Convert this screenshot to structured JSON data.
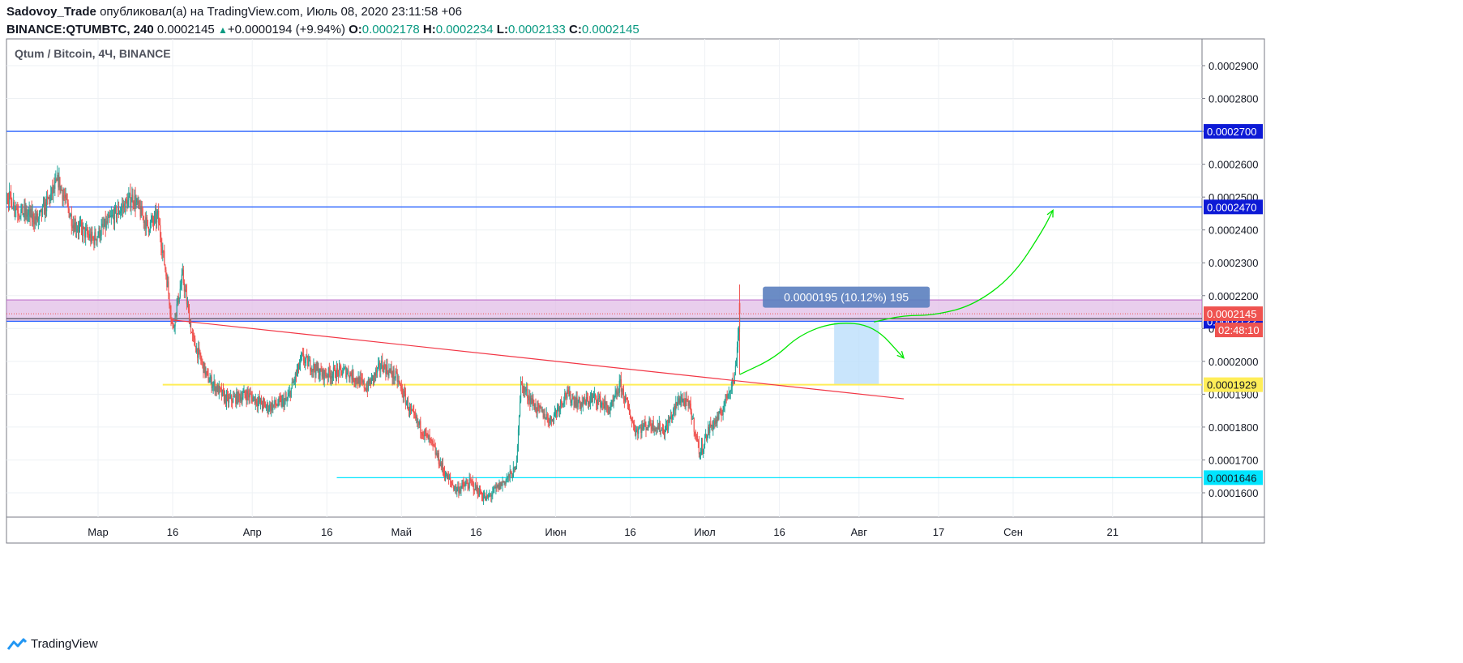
{
  "header": {
    "author": "Sadovoy_Trade",
    "published_text": "опубликовал(а) на TradingView.com, Июль 08, 2020 23:11:58 +06",
    "symbol": "BINANCE:QTUMBTC, 240",
    "last": "0.0002145",
    "change_arrow": "▲",
    "change": "+0.0000194 (+9.94%)",
    "o_label": "O:",
    "o_value": "0.0002178",
    "h_label": "H:",
    "h_value": "0.0002234",
    "l_label": "L:",
    "l_value": "0.0002133",
    "c_label": "C:",
    "c_value": "0.0002145"
  },
  "footer": {
    "brand": "TradingView"
  },
  "colors": {
    "up": "#26a69a",
    "down": "#ef5350",
    "grid": "#eef1f4",
    "resistance_blue": "#2962ff",
    "zone_fill": "#e1bee7",
    "trendline": "#f23645",
    "support_yellow": "#ffee58",
    "support_cyan": "#00e5ff",
    "projection_green": "#00e600",
    "measure_fill": "#bbdefb"
  },
  "chart_data": {
    "type": "candlestick",
    "title": "Qtum / Bitcoin, 4Ч, BINANCE",
    "timeframe": "4h",
    "date_range": [
      "2020-02-01",
      "2020-07-08"
    ],
    "y_ticks": [
      "0.0001600",
      "0.0001700",
      "0.0001800",
      "0.0001900",
      "0.0002000",
      "0.0002100",
      "0.0002200",
      "0.0002300",
      "0.0002400",
      "0.0002500",
      "0.0002600",
      "0.0002700",
      "0.0002800",
      "0.0002900"
    ],
    "y_range": [
      0.000153,
      0.000296
    ],
    "x_ticks": [
      {
        "label": "Мар",
        "date": "2020-03-01"
      },
      {
        "label": "16",
        "date": "2020-03-16"
      },
      {
        "label": "Апр",
        "date": "2020-04-01"
      },
      {
        "label": "16",
        "date": "2020-04-16"
      },
      {
        "label": "Май",
        "date": "2020-05-01"
      },
      {
        "label": "16",
        "date": "2020-05-16"
      },
      {
        "label": "Июн",
        "date": "2020-06-01"
      },
      {
        "label": "16",
        "date": "2020-06-16"
      },
      {
        "label": "Июл",
        "date": "2020-07-01"
      },
      {
        "label": "16",
        "date": "2020-07-16"
      },
      {
        "label": "Авг",
        "date": "2020-08-01"
      },
      {
        "label": "17",
        "date": "2020-08-17"
      },
      {
        "label": "Сен",
        "date": "2020-09-01"
      },
      {
        "label": "21",
        "date": "2020-09-21"
      }
    ],
    "price_path": [
      [
        "2020-02-01",
        0.00026
      ],
      [
        "2020-02-03",
        0.00028
      ],
      [
        "2020-02-05",
        0.000289
      ],
      [
        "2020-02-08",
        0.000262
      ],
      [
        "2020-02-11",
        0.000252
      ],
      [
        "2020-02-14",
        0.000246
      ],
      [
        "2020-02-18",
        0.000243
      ],
      [
        "2020-02-22",
        0.000255
      ],
      [
        "2020-02-25",
        0.000242
      ],
      [
        "2020-02-29",
        0.000237
      ],
      [
        "2020-03-04",
        0.000244
      ],
      [
        "2020-03-08",
        0.00025
      ],
      [
        "2020-03-11",
        0.000241
      ],
      [
        "2020-03-13",
        0.000244
      ],
      [
        "2020-03-15",
        0.000223
      ],
      [
        "2020-03-16",
        0.00021
      ],
      [
        "2020-03-18",
        0.000226
      ],
      [
        "2020-03-20",
        0.000207
      ],
      [
        "2020-03-23",
        0.000195
      ],
      [
        "2020-03-27",
        0.000188
      ],
      [
        "2020-03-31",
        0.00019
      ],
      [
        "2020-04-04",
        0.000186
      ],
      [
        "2020-04-08",
        0.000188
      ],
      [
        "2020-04-11",
        0.000201
      ],
      [
        "2020-04-15",
        0.000196
      ],
      [
        "2020-04-20",
        0.000197
      ],
      [
        "2020-04-24",
        0.000192
      ],
      [
        "2020-04-27",
        0.000199
      ],
      [
        "2020-04-30",
        0.000195
      ],
      [
        "2020-05-03",
        0.000184
      ],
      [
        "2020-05-07",
        0.000175
      ],
      [
        "2020-05-10",
        0.000165
      ],
      [
        "2020-05-12",
        0.000161
      ],
      [
        "2020-05-15",
        0.000163
      ],
      [
        "2020-05-18",
        0.000158
      ],
      [
        "2020-05-22",
        0.000164
      ],
      [
        "2020-05-24",
        0.000167
      ],
      [
        "2020-05-25",
        0.000193
      ],
      [
        "2020-05-28",
        0.000186
      ],
      [
        "2020-05-31",
        0.000182
      ],
      [
        "2020-06-03",
        0.00019
      ],
      [
        "2020-06-06",
        0.000187
      ],
      [
        "2020-06-09",
        0.000189
      ],
      [
        "2020-06-12",
        0.000185
      ],
      [
        "2020-06-14",
        0.000193
      ],
      [
        "2020-06-17",
        0.000179
      ],
      [
        "2020-06-20",
        0.000181
      ],
      [
        "2020-06-23",
        0.000179
      ],
      [
        "2020-06-26",
        0.000189
      ],
      [
        "2020-06-28",
        0.000186
      ],
      [
        "2020-06-30",
        0.000172
      ],
      [
        "2020-07-02",
        0.00018
      ],
      [
        "2020-07-04",
        0.000183
      ],
      [
        "2020-07-06",
        0.000192
      ],
      [
        "2020-07-07",
        0.000195
      ],
      [
        "2020-07-08",
        0.0002145
      ]
    ],
    "horizontal_lines": [
      {
        "price": 0.00027,
        "label": "0.0002700",
        "color": "#2962ff"
      },
      {
        "price": 0.000247,
        "label": "0.0002470",
        "color": "#2962ff"
      },
      {
        "price": 0.0002122,
        "label": "0.0002122",
        "color": "#2962ff"
      },
      {
        "price": 0.0001929,
        "label": "0.0001929",
        "color": "#ffee58"
      },
      {
        "price": 0.0001646,
        "label": "0.0001646",
        "color": "#00e5ff"
      }
    ],
    "current_price": {
      "price": 0.0002145,
      "label": "0.0002145",
      "countdown": "02:48:10"
    },
    "zone": {
      "top": 0.0002187,
      "bottom": 0.0002122
    },
    "zone_line": 0.000213,
    "trendline": [
      [
        "2020-03-16",
        0.0002126
      ],
      [
        "2020-08-10",
        0.0001886
      ]
    ],
    "measure": {
      "from_date": "2020-07-27",
      "to_date": "2020-08-05",
      "low": 0.0001929,
      "high": 0.0002124,
      "label": "0.0000195 (10.12%) 195"
    },
    "projection_paths": [
      [
        [
          "2020-07-08",
          0.000196
        ],
        [
          "2020-07-15",
          0.000201
        ],
        [
          "2020-07-20",
          0.000208
        ],
        [
          "2020-07-27",
          0.000212
        ],
        [
          "2020-08-04",
          0.000211
        ],
        [
          "2020-08-10",
          0.000201
        ]
      ],
      [
        [
          "2020-08-04",
          0.000212
        ],
        [
          "2020-08-10",
          0.000214
        ],
        [
          "2020-08-16",
          0.000214
        ],
        [
          "2020-08-24",
          0.000217
        ],
        [
          "2020-09-01",
          0.000226
        ],
        [
          "2020-09-07",
          0.00024
        ],
        [
          "2020-09-09",
          0.000246
        ]
      ]
    ]
  }
}
